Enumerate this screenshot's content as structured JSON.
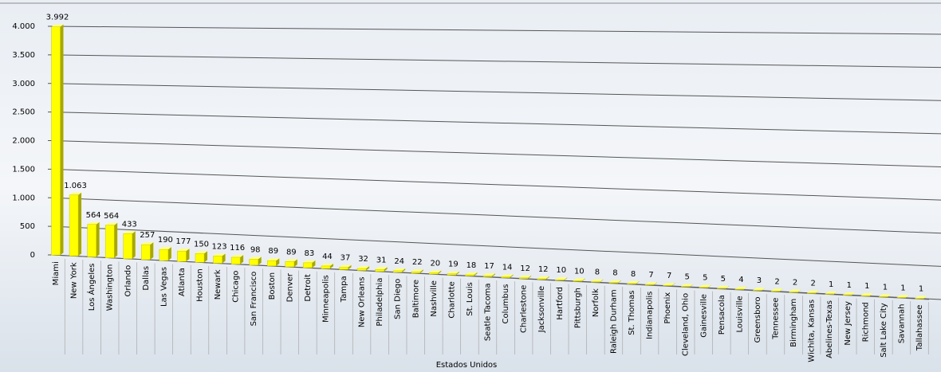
{
  "chart_data": {
    "type": "bar",
    "x_label": "Estados Unidos",
    "categories": [
      "Miami",
      "New York",
      "Los Ángeles",
      "Washington",
      "Orlando",
      "Dallas",
      "Las Vegas",
      "Atlanta",
      "Houston",
      "Newark",
      "Chicago",
      "San Francisco",
      "Boston",
      "Denver",
      "Detroit",
      "Minneapolis",
      "Tampa",
      "New Orleans",
      "Philadelphia",
      "San Diego",
      "Baltimore",
      "Nashville",
      "Charlotte",
      "St. Louis",
      "Seatle Tacoma",
      "Columbus",
      "Charlestone",
      "Jacksonville",
      "Hartford",
      "Pittsburgh",
      "Norfolk",
      "Raleigh Durham",
      "St. Thomas",
      "Indianapolis",
      "Phoenix",
      "Cleveland, Ohio",
      "Gainesville",
      "Pensacola",
      "Louisville",
      "Greensboro",
      "Tennessee",
      "Birmingham",
      "Wichita, Kansas",
      "Abelines-Texas",
      "New Jersey",
      "Richmond",
      "Salt Lake City",
      "Savannah",
      "Tallahassee"
    ],
    "values": [
      3992,
      1063,
      564,
      564,
      433,
      257,
      190,
      177,
      150,
      123,
      116,
      98,
      89,
      89,
      83,
      44,
      37,
      32,
      31,
      24,
      22,
      20,
      19,
      18,
      17,
      14,
      12,
      12,
      10,
      10,
      8,
      8,
      8,
      7,
      7,
      5,
      5,
      5,
      4,
      3,
      2,
      2,
      2,
      1,
      1,
      1,
      1,
      1,
      1
    ],
    "value_labels": [
      "3.992",
      "1.063",
      "564",
      "564",
      "433",
      "257",
      "190",
      "177",
      "150",
      "123",
      "116",
      "98",
      "89",
      "89",
      "83",
      "44",
      "37",
      "32",
      "31",
      "24",
      "22",
      "20",
      "19",
      "18",
      "17",
      "14",
      "12",
      "12",
      "10",
      "10",
      "8",
      "8",
      "8",
      "7",
      "7",
      "5",
      "5",
      "5",
      "4",
      "3",
      "2",
      "2",
      "2",
      "1",
      "1",
      "1",
      "1",
      "1",
      "1"
    ],
    "color": "#ffff00",
    "ylim": [
      0,
      4000
    ],
    "yticks": [
      0,
      500,
      {
        "value": 1000,
        "label": "1.000"
      },
      {
        "value": 1500,
        "label": "1.500"
      },
      {
        "value": 2000,
        "label": "2.000"
      },
      {
        "value": 2500,
        "label": "2.500"
      },
      {
        "value": 3000,
        "label": "3.000"
      },
      {
        "value": 3500,
        "label": "3.500"
      },
      {
        "value": 4000,
        "label": "4.000"
      }
    ],
    "grid": true
  }
}
